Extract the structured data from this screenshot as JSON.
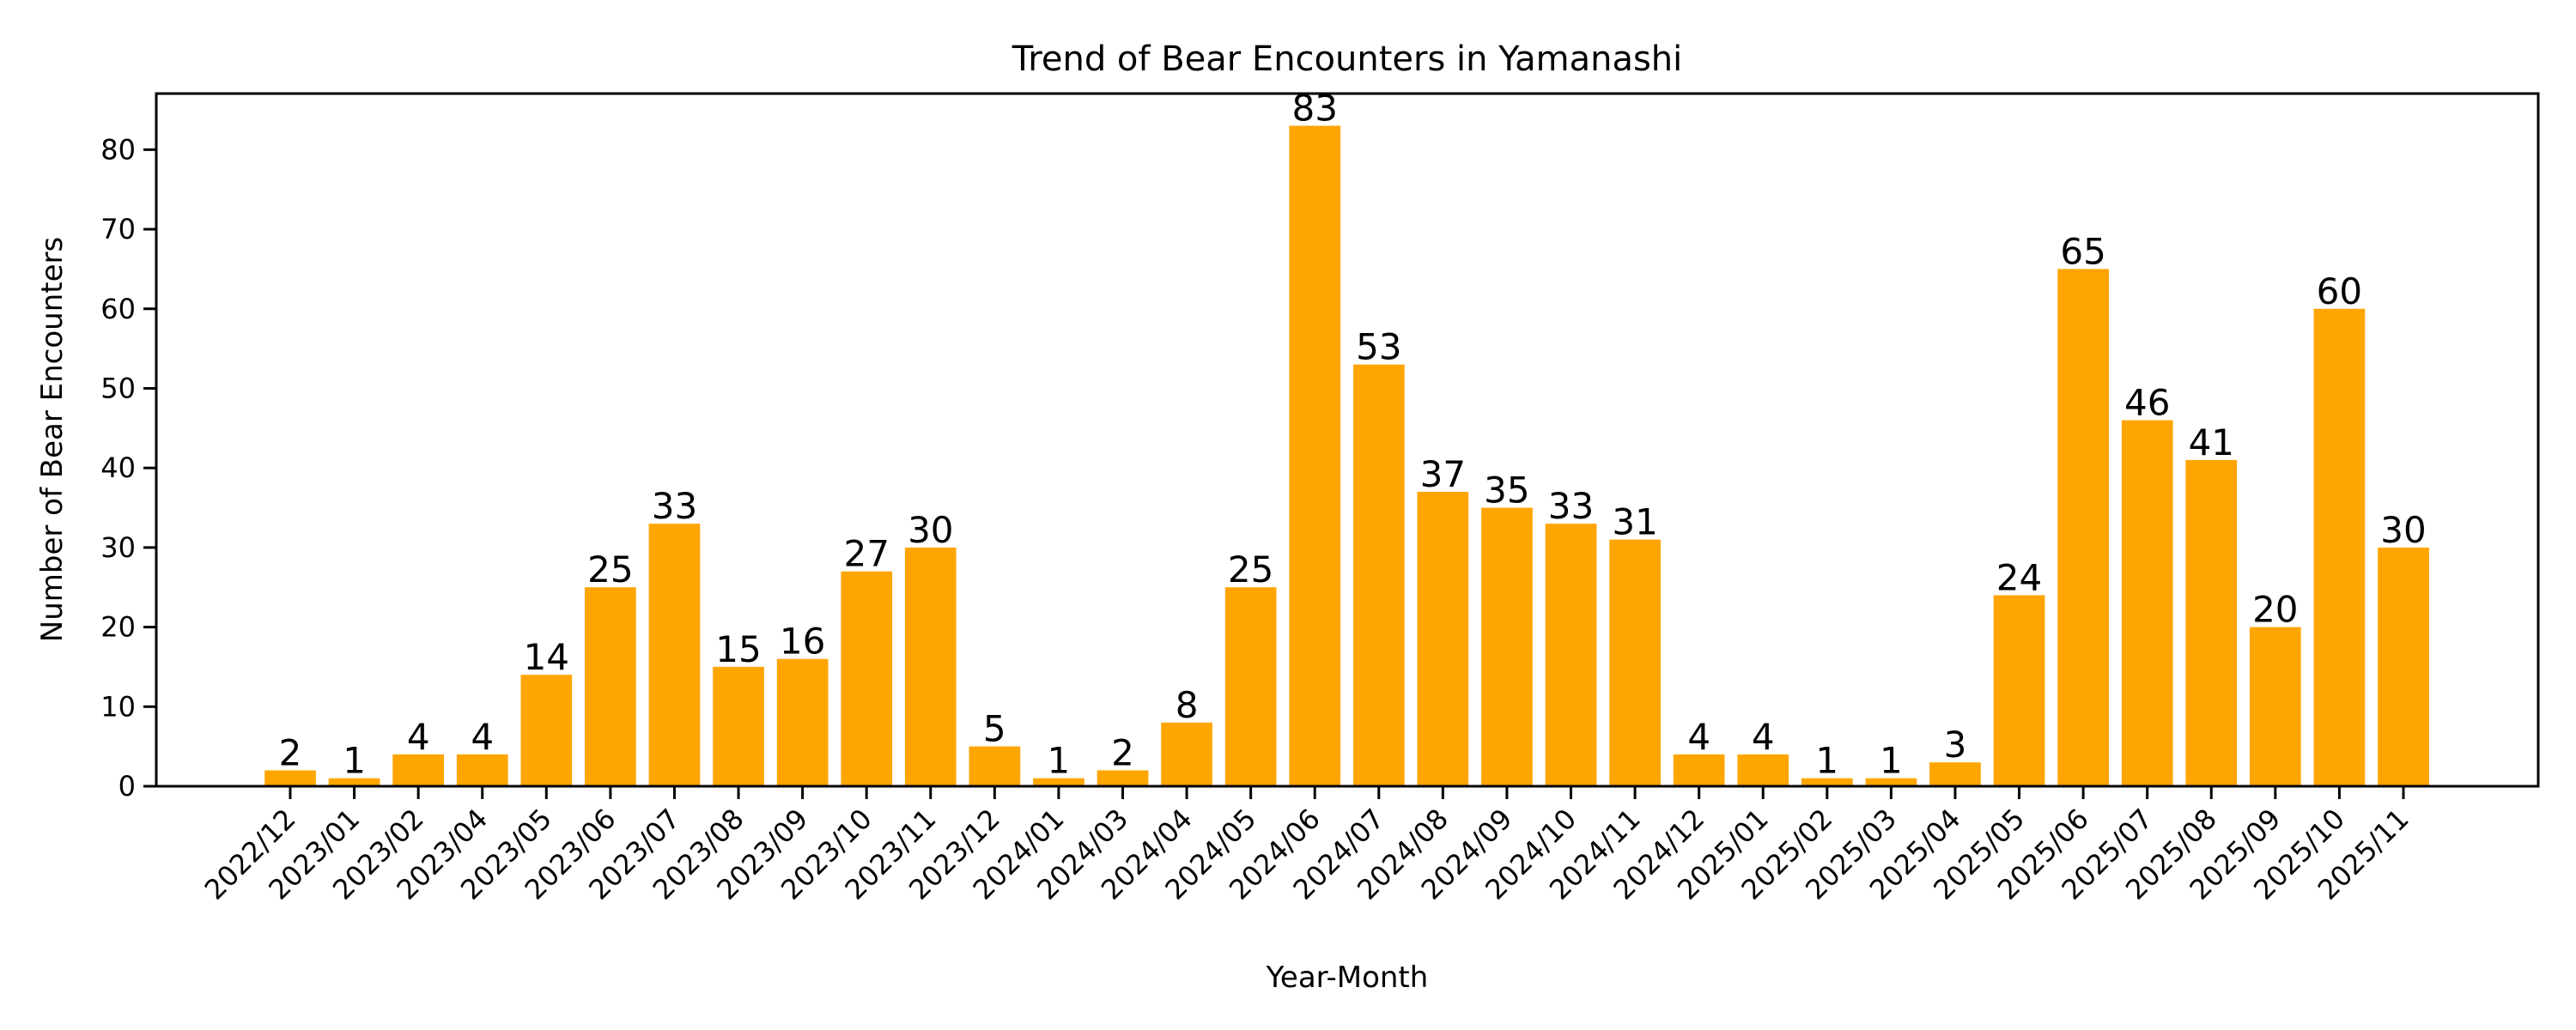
{
  "chart_data": {
    "type": "bar",
    "title": "Trend of Bear Encounters in Yamanashi",
    "xlabel": "Year-Month",
    "ylabel": "Number of Bear Encounters",
    "categories": [
      "2022/12",
      "2023/01",
      "2023/02",
      "2023/04",
      "2023/05",
      "2023/06",
      "2023/07",
      "2023/08",
      "2023/09",
      "2023/10",
      "2023/11",
      "2023/12",
      "2024/01",
      "2024/03",
      "2024/04",
      "2024/05",
      "2024/06",
      "2024/07",
      "2024/08",
      "2024/09",
      "2024/10",
      "2024/11",
      "2024/12",
      "2025/01",
      "2025/02",
      "2025/03",
      "2025/04",
      "2025/05",
      "2025/06",
      "2025/07",
      "2025/08",
      "2025/09",
      "2025/10",
      "2025/11"
    ],
    "values": [
      2,
      1,
      4,
      4,
      14,
      25,
      33,
      15,
      16,
      27,
      30,
      5,
      1,
      2,
      8,
      25,
      83,
      53,
      37,
      35,
      33,
      31,
      4,
      4,
      1,
      1,
      3,
      24,
      65,
      46,
      41,
      20,
      60,
      30
    ],
    "data_labels": true,
    "ylim": [
      0,
      87
    ],
    "yticks": [
      0,
      10,
      20,
      30,
      40,
      50,
      60,
      70,
      80
    ],
    "xtick_rotation": 45,
    "grid": false,
    "legend": null,
    "bar_color": "#FFA500"
  }
}
